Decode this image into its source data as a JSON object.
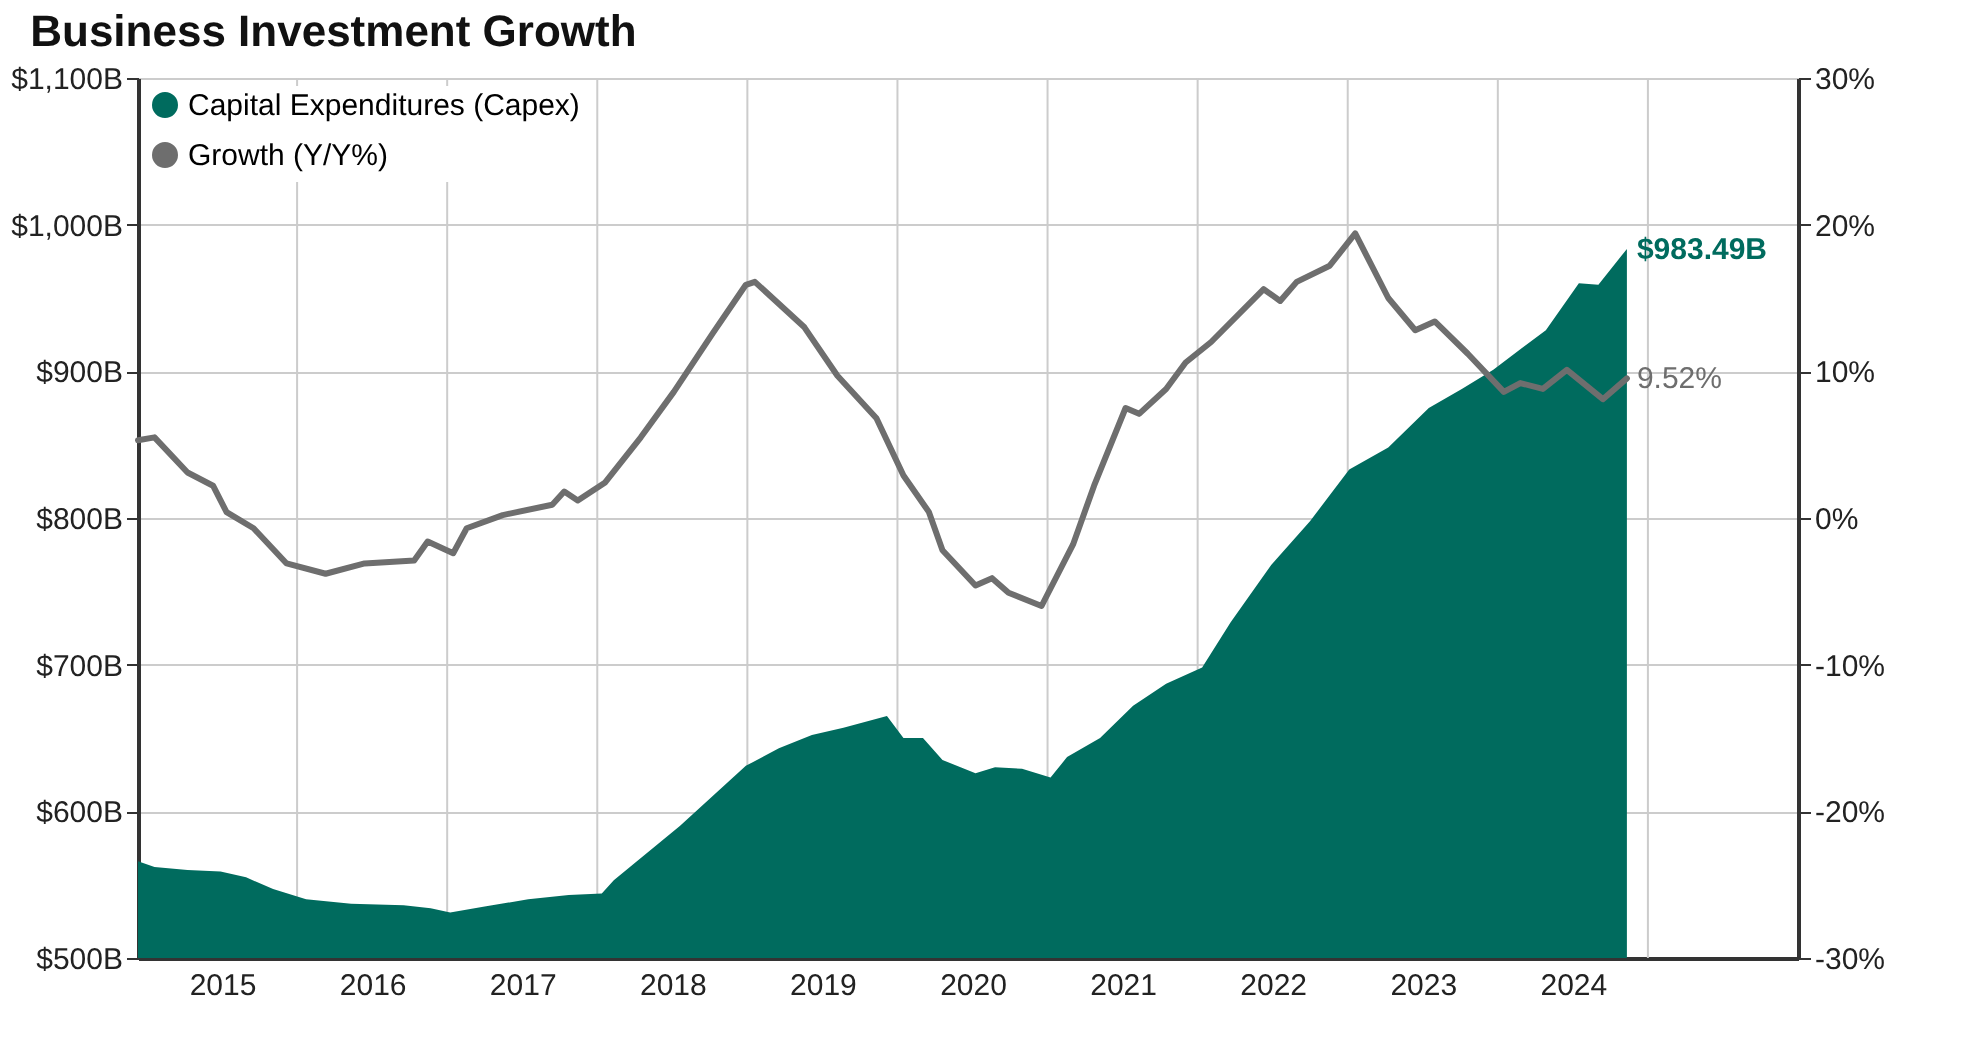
{
  "chart_data": {
    "type": "area",
    "title": "Business Investment Growth",
    "x": [
      2014.94,
      2015.05,
      2015.27,
      2015.49,
      2015.66,
      2015.84,
      2016.06,
      2016.36,
      2016.71,
      2016.89,
      2017.02,
      2017.24,
      2017.54,
      2017.81,
      2018.03,
      2018.11,
      2018.55,
      2018.99,
      2019.21,
      2019.43,
      2019.64,
      2019.93,
      2020.04,
      2020.17,
      2020.3,
      2020.52,
      2020.65,
      2020.83,
      2021.02,
      2021.13,
      2021.35,
      2021.57,
      2021.79,
      2022.03,
      2022.22,
      2022.49,
      2022.75,
      2023.01,
      2023.27,
      2023.54,
      2023.76,
      2023.97,
      2024.15,
      2024.32,
      2024.54,
      2024.67,
      2024.86
    ],
    "series": [
      {
        "name": "Capital Expenditures (Capex)",
        "color": "#006b5e",
        "values": [
          566,
          562,
          560,
          559,
          555,
          547,
          540,
          537,
          536,
          534,
          531,
          535,
          540,
          543,
          544,
          553,
          590,
          631,
          643,
          652,
          657,
          665,
          650,
          650,
          635,
          626,
          630,
          629,
          623,
          637,
          650,
          672,
          687,
          698,
          729,
          768,
          798,
          833,
          848,
          875,
          888,
          901,
          915,
          928,
          960,
          959,
          983.49
        ],
        "value_labels": [
          null,
          null,
          null,
          null,
          null,
          null,
          null,
          null,
          null,
          null,
          null,
          null,
          null,
          null,
          null,
          null,
          null,
          null,
          null,
          null,
          null,
          null,
          null,
          null,
          null,
          null,
          null,
          null,
          null,
          null,
          null,
          null,
          null,
          null,
          null,
          null,
          null,
          null,
          null,
          null,
          null,
          null,
          null,
          null,
          null,
          null,
          "$983.49B"
        ]
      },
      {
        "name": "Growth (Y/Y%)",
        "type": "line",
        "axis": "y2",
        "color": "#6e6e6e",
        "x": [
          2014.94,
          2015.05,
          2015.27,
          2015.44,
          2015.53,
          2015.71,
          2015.93,
          2016.19,
          2016.45,
          2016.78,
          2016.87,
          2017.04,
          2017.13,
          2017.37,
          2017.7,
          2017.78,
          2017.87,
          2018.05,
          2018.29,
          2018.51,
          2018.77,
          2018.99,
          2019.05,
          2019.38,
          2019.6,
          2019.86,
          2020.04,
          2020.21,
          2020.3,
          2020.52,
          2020.63,
          2020.74,
          2020.96,
          2021.17,
          2021.31,
          2021.52,
          2021.61,
          2021.79,
          2021.92,
          2022.09,
          2022.44,
          2022.55,
          2022.66,
          2022.88,
          2023.05,
          2023.27,
          2023.45,
          2023.58,
          2023.8,
          2024.04,
          2024.15,
          2024.3,
          2024.46,
          2024.7,
          2024.86
        ],
        "values": [
          5.3,
          5.5,
          3.1,
          2.2,
          0.4,
          -0.7,
          -3.1,
          -3.8,
          -3.1,
          -2.9,
          -1.6,
          -2.4,
          -0.7,
          0.2,
          0.9,
          1.8,
          1.2,
          2.4,
          5.5,
          8.6,
          12.6,
          15.9,
          16.1,
          13.0,
          9.7,
          6.8,
          2.9,
          0.4,
          -2.2,
          -4.6,
          -4.1,
          -5.1,
          -6.0,
          -1.8,
          2.2,
          7.5,
          7.1,
          8.8,
          10.6,
          12.0,
          15.6,
          14.8,
          16.1,
          17.2,
          19.4,
          15.0,
          12.8,
          13.4,
          11.2,
          8.6,
          9.2,
          8.8,
          10.1,
          8.1,
          9.52
        ],
        "value_labels": [
          null,
          null,
          null,
          null,
          null,
          null,
          null,
          null,
          null,
          null,
          null,
          null,
          null,
          null,
          null,
          null,
          null,
          null,
          null,
          null,
          null,
          null,
          null,
          null,
          null,
          null,
          null,
          null,
          null,
          null,
          null,
          null,
          null,
          null,
          null,
          null,
          null,
          null,
          null,
          null,
          null,
          null,
          null,
          null,
          null,
          null,
          null,
          null,
          null,
          null,
          null,
          null,
          null,
          null,
          "9.52%"
        ]
      }
    ],
    "xlim": [
      2014.94,
      2026.0
    ],
    "xticks": [
      {
        "value": 2015.5,
        "label": "2015"
      },
      {
        "value": 2016,
        "label": null
      },
      {
        "value": 2016.5,
        "label": "2016"
      },
      {
        "value": 2017,
        "label": null
      },
      {
        "value": 2017.5,
        "label": "2017"
      },
      {
        "value": 2018,
        "label": null
      },
      {
        "value": 2018.5,
        "label": "2018"
      },
      {
        "value": 2019,
        "label": null
      },
      {
        "value": 2019.5,
        "label": "2019"
      },
      {
        "value": 2020,
        "label": null
      },
      {
        "value": 2020.5,
        "label": "2020"
      },
      {
        "value": 2021,
        "label": null
      },
      {
        "value": 2021.5,
        "label": "2021"
      },
      {
        "value": 2022,
        "label": null
      },
      {
        "value": 2022.5,
        "label": "2022"
      },
      {
        "value": 2023,
        "label": null
      },
      {
        "value": 2023.5,
        "label": "2023"
      },
      {
        "value": 2024,
        "label": null
      },
      {
        "value": 2024.5,
        "label": "2024"
      },
      {
        "value": 2025,
        "label": null
      }
    ],
    "ylim": [
      500,
      1100
    ],
    "yticks": [
      {
        "value": 500,
        "label": "$500B"
      },
      {
        "value": 600,
        "label": "$600B"
      },
      {
        "value": 700,
        "label": "$700B"
      },
      {
        "value": 800,
        "label": "$800B"
      },
      {
        "value": 900,
        "label": "$900B"
      },
      {
        "value": 1000,
        "label": "$1,000B"
      },
      {
        "value": 1100,
        "label": "$1,100B"
      }
    ],
    "y2lim": [
      -30,
      30
    ],
    "y2ticks": [
      {
        "value": -30,
        "label": "-30%"
      },
      {
        "value": -20,
        "label": "-20%"
      },
      {
        "value": -10,
        "label": "-10%"
      },
      {
        "value": 0,
        "label": "0%"
      },
      {
        "value": 10,
        "label": "10%"
      },
      {
        "value": 20,
        "label": "20%"
      },
      {
        "value": 30,
        "label": "30%"
      }
    ],
    "grid": true,
    "legend": "top left"
  }
}
